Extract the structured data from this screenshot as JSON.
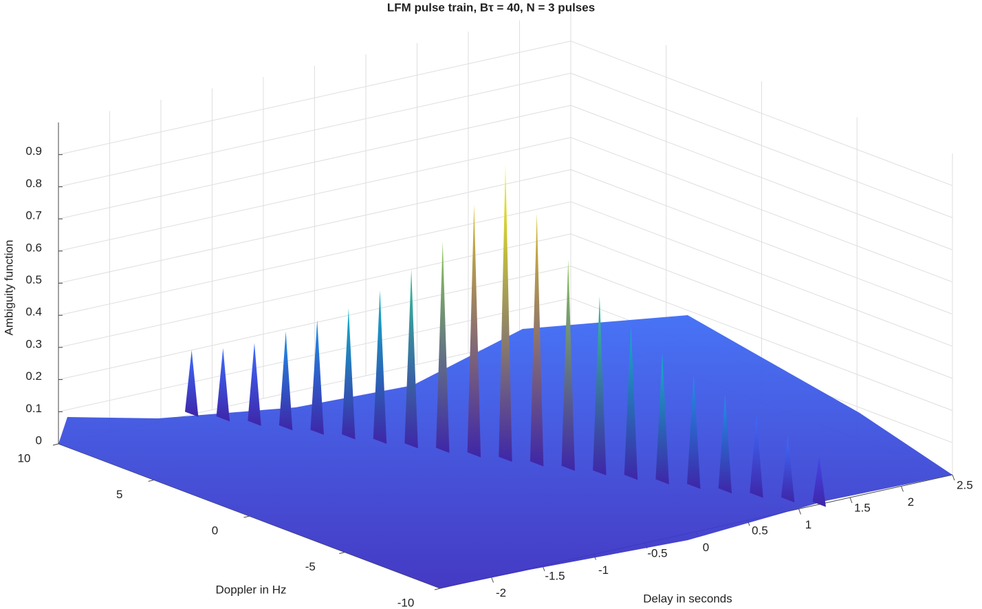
{
  "chart_data": {
    "type": "surface3d",
    "title": "LFM  pulse  train,  Bτ  =  40,  N  =  3  pulses",
    "x_label": "Delay in seconds",
    "y_label": "Doppler in Hz",
    "z_label": "Ambiguity function",
    "xlim": [
      -2.5,
      2.5
    ],
    "ylim": [
      -10,
      10
    ],
    "zlim": [
      0,
      1
    ],
    "xticks": [
      -2,
      -1.5,
      -1,
      -0.5,
      0,
      0.5,
      1,
      1.5,
      2,
      2.5
    ],
    "yticks": [
      -10,
      -5,
      0,
      5,
      10
    ],
    "zticks": [
      0,
      0.1,
      0.2,
      0.3,
      0.4,
      0.5,
      0.6,
      0.7,
      0.8,
      0.9
    ],
    "grid": true,
    "colormap": [
      "#3e26a8",
      "#4746eb",
      "#3e6dfd",
      "#1f94e8",
      "#14b3c8",
      "#35c49a",
      "#8dca5a",
      "#d9be35",
      "#fcce2e",
      "#f9fb15"
    ],
    "x": [
      -1.2,
      -1.08,
      -0.96,
      -0.84,
      -0.72,
      -0.6,
      -0.48,
      -0.36,
      -0.24,
      -0.12,
      0,
      0.12,
      0.24,
      0.36,
      0.48,
      0.6,
      0.72,
      0.84,
      0.96,
      1.08,
      1.2
    ],
    "y": [
      10,
      9,
      8,
      7,
      6,
      5,
      4,
      3,
      2,
      1,
      0,
      -1,
      -2,
      -3,
      -4,
      -5,
      -6,
      -7,
      -8,
      -9,
      -10
    ],
    "z": [
      0.2,
      0.22,
      0.25,
      0.3,
      0.35,
      0.4,
      0.47,
      0.55,
      0.65,
      0.78,
      0.92,
      0.78,
      0.65,
      0.55,
      0.47,
      0.4,
      0.35,
      0.3,
      0.25,
      0.2,
      0.15
    ]
  }
}
